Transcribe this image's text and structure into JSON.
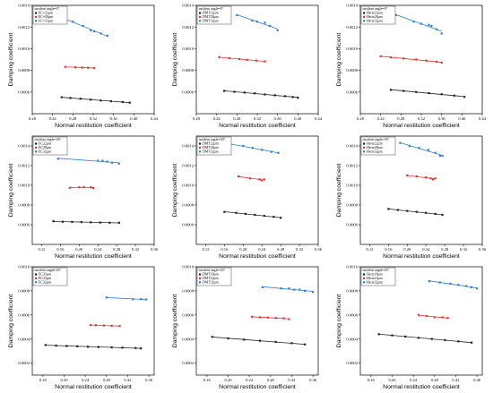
{
  "colors": {
    "series_1": "#222222",
    "series_2": "#e8322b",
    "series_3": "#2b7fd6"
  },
  "chart_data": [
    {
      "type": "line",
      "title": "",
      "xlabel": "Normal restitution coefficient",
      "ylabel": "Damping coefficient",
      "xlim": [
        0.2,
        0.44
      ],
      "ylim": [
        0.0004,
        0.0014
      ],
      "xticks": [
        "0.20",
        "0.24",
        "0.28",
        "0.32",
        "0.36",
        "0.40",
        "0.44"
      ],
      "yticks": [
        "0.0006",
        "0.0008",
        "0.0010",
        "0.0012",
        "0.0014"
      ],
      "legend_title": "incident angle=0°",
      "legend_position": "top-left",
      "series": [
        {
          "name": "EC=22μm",
          "x": [
            0.258,
            0.275,
            0.295,
            0.315,
            0.335,
            0.355,
            0.378,
            0.392
          ],
          "y": [
            0.000552,
            0.000545,
            0.000538,
            0.00053,
            0.000522,
            0.000515,
            0.000508,
            0.000502
          ]
        },
        {
          "name": "EC=28μm",
          "x": [
            0.265,
            0.285,
            0.298,
            0.31,
            0.322
          ],
          "y": [
            0.000832,
            0.000828,
            0.000826,
            0.000824,
            0.000822
          ]
        },
        {
          "name": "EC=32μm",
          "x": [
            0.262,
            0.28,
            0.3,
            0.315,
            0.322,
            0.335,
            0.348
          ],
          "y": [
            0.00128,
            0.00125,
            0.00121,
            0.00117,
            0.00116,
            0.00114,
            0.00112
          ]
        }
      ]
    },
    {
      "type": "line",
      "title": "",
      "xlabel": "Normal restitution coefficient",
      "ylabel": "Damping coefficient",
      "xlim": [
        0.2,
        0.44
      ],
      "ylim": [
        0.0004,
        0.0014
      ],
      "xticks": [
        "0.20",
        "0.24",
        "0.28",
        "0.32",
        "0.36",
        "0.40",
        "0.44"
      ],
      "yticks": [
        "0.0006",
        "0.0008",
        "0.0010",
        "0.0012",
        "0.0014"
      ],
      "legend_title": "incident angle=0°",
      "legend_position": "top-left",
      "series": [
        {
          "name": "DMT22μm",
          "x": [
            0.255,
            0.275,
            0.295,
            0.315,
            0.335,
            0.355,
            0.375,
            0.39,
            0.4
          ],
          "y": [
            0.00061,
            0.000602,
            0.000595,
            0.000588,
            0.000578,
            0.00057,
            0.000562,
            0.000554,
            0.000548
          ]
        },
        {
          "name": "DMT28μm",
          "x": [
            0.245,
            0.265,
            0.285,
            0.3,
            0.318,
            0.335
          ],
          "y": [
            0.000922,
            0.000912,
            0.000905,
            0.000897,
            0.00089,
            0.000883
          ]
        },
        {
          "name": "DMT32μm",
          "x": [
            0.28,
            0.31,
            0.32,
            0.335,
            0.345,
            0.36
          ],
          "y": [
            0.00131,
            0.00126,
            0.00125,
            0.00124,
            0.00121,
            0.00117
          ]
        }
      ]
    },
    {
      "type": "line",
      "title": "",
      "xlabel": "Normal restitution coefficient",
      "ylabel": "Damping coefficient",
      "xlim": [
        0.2,
        0.44
      ],
      "ylim": [
        0.0004,
        0.0014
      ],
      "xticks": [
        "0.20",
        "0.24",
        "0.28",
        "0.32",
        "0.36",
        "0.40",
        "0.44"
      ],
      "yticks": [
        "0.0006",
        "0.0008",
        "0.0010",
        "0.0012",
        "0.0014"
      ],
      "legend_title": "incident angle=0°",
      "legend_position": "top-left",
      "series": [
        {
          "name": "Hertz22μm",
          "x": [
            0.26,
            0.285,
            0.31,
            0.335,
            0.36,
            0.385,
            0.405
          ],
          "y": [
            0.00062,
            0.00061,
            0.0006,
            0.00059,
            0.00058,
            0.000567,
            0.000555
          ]
        },
        {
          "name": "Hertz28μm",
          "x": [
            0.24,
            0.26,
            0.285,
            0.31,
            0.33,
            0.35,
            0.36
          ],
          "y": [
            0.00093,
            0.00092,
            0.00091,
            0.0009,
            0.00089,
            0.00088,
            0.000872
          ]
        },
        {
          "name": "Hertz32μm",
          "x": [
            0.27,
            0.305,
            0.32,
            0.335,
            0.34,
            0.35,
            0.36
          ],
          "y": [
            0.00131,
            0.00125,
            0.00123,
            0.00122,
            0.00121,
            0.00118,
            0.00114
          ]
        }
      ]
    },
    {
      "type": "line",
      "title": "",
      "xlabel": "Normal restitution coefficient",
      "ylabel": "Damping coefficient",
      "xlim": [
        0.1,
        0.36
      ],
      "ylim": [
        0.0004,
        0.0015
      ],
      "xticks": [
        "0.12",
        "0.16",
        "0.20",
        "0.24",
        "0.28",
        "0.32",
        "0.36"
      ],
      "yticks": [
        "0.0006",
        "0.0008",
        "0.0010",
        "0.0012",
        "0.0014"
      ],
      "legend_title": "incident angle=30°",
      "legend_position": "top-left",
      "series": [
        {
          "name": "EC22μm",
          "x": [
            0.145,
            0.165,
            0.185,
            0.205,
            0.225,
            0.245,
            0.265,
            0.285
          ],
          "y": [
            0.000635,
            0.00063,
            0.000628,
            0.000626,
            0.000624,
            0.000622,
            0.00062,
            0.00062
          ]
        },
        {
          "name": "EC28μm",
          "x": [
            0.18,
            0.2,
            0.21,
            0.225,
            0.23
          ],
          "y": [
            0.000975,
            0.00098,
            0.000982,
            0.00098,
            0.000972
          ]
        },
        {
          "name": "EC32μm",
          "x": [
            0.155,
            0.24,
            0.25,
            0.26,
            0.27,
            0.285
          ],
          "y": [
            0.00127,
            0.00125,
            0.00125,
            0.00124,
            0.00123,
            0.00122
          ]
        }
      ]
    },
    {
      "type": "line",
      "title": "",
      "xlabel": "Normal restitution coefficient",
      "ylabel": "Damping coefficient",
      "xlim": [
        0.1,
        0.36
      ],
      "ylim": [
        0.0004,
        0.0015
      ],
      "xticks": [
        "0.12",
        "0.16",
        "0.20",
        "0.24",
        "0.28",
        "0.32",
        "0.36"
      ],
      "yticks": [
        "0.0006",
        "0.0008",
        "0.0010",
        "0.0012",
        "0.0014"
      ],
      "legend_title": "incident angle=30°",
      "legend_position": "top-left",
      "series": [
        {
          "name": "DMT22μm",
          "x": [
            0.16,
            0.185,
            0.205,
            0.225,
            0.245,
            0.265,
            0.28
          ],
          "y": [
            0.00073,
            0.00072,
            0.00071,
            0.0007,
            0.00069,
            0.00068,
            0.00067
          ]
        },
        {
          "name": "DMT28μm",
          "x": [
            0.19,
            0.215,
            0.235,
            0.24,
            0.245
          ],
          "y": [
            0.00109,
            0.00107,
            0.00106,
            0.00105,
            0.00106
          ]
        },
        {
          "name": "DMT32μm",
          "x": [
            0.17,
            0.2,
            0.22,
            0.24,
            0.26,
            0.275
          ],
          "y": [
            0.00142,
            0.0014,
            0.00138,
            0.00136,
            0.00134,
            0.00133
          ]
        }
      ]
    },
    {
      "type": "line",
      "title": "",
      "xlabel": "Normal restitution coefficient",
      "ylabel": "Damping coefficient",
      "xlim": [
        0.1,
        0.36
      ],
      "ylim": [
        0.0004,
        0.0015
      ],
      "xticks": [
        "0.12",
        "0.16",
        "0.20",
        "0.24",
        "0.28",
        "0.32",
        "0.36"
      ],
      "yticks": [
        "0.0006",
        "0.0008",
        "0.0010",
        "0.0012",
        "0.0014"
      ],
      "legend_title": "incident angle=30°",
      "legend_position": "top-left",
      "series": [
        {
          "name": "Hertz22μm",
          "x": [
            0.16,
            0.18,
            0.2,
            0.22,
            0.24,
            0.26,
            0.275
          ],
          "y": [
            0.00076,
            0.00075,
            0.00074,
            0.00073,
            0.00072,
            0.00071,
            0.0007
          ]
        },
        {
          "name": "Hertz28μm",
          "x": [
            0.2,
            0.22,
            0.24,
            0.25,
            0.255,
            0.26
          ],
          "y": [
            0.0011,
            0.00109,
            0.00108,
            0.00107,
            0.00106,
            0.00107
          ]
        },
        {
          "name": "Hertz32μm",
          "x": [
            0.185,
            0.205,
            0.225,
            0.245,
            0.26,
            0.27,
            0.275
          ],
          "y": [
            0.00143,
            0.0014,
            0.00138,
            0.00136,
            0.00133,
            0.0013,
            0.0013
          ]
        }
      ]
    },
    {
      "type": "line",
      "title": "",
      "xlabel": "Normal restitution coefficient",
      "ylabel": "Damping coefficient",
      "xlim": [
        0.14,
        0.37
      ],
      "ylim": [
        0.0001,
        0.001
      ],
      "xticks": [
        "0.16",
        "0.20",
        "0.24",
        "0.28",
        "0.32",
        "0.36"
      ],
      "yticks": [
        "0.0002",
        "0.0004",
        "0.0006",
        "0.0008",
        "0.0010"
      ],
      "legend_title": "incident angle=45°",
      "legend_position": "top-left",
      "series": [
        {
          "name": "EC33μm",
          "x": [
            0.165,
            0.185,
            0.205,
            0.225,
            0.245,
            0.265,
            0.29,
            0.31,
            0.335,
            0.345
          ],
          "y": [
            0.00035,
            0.000345,
            0.000342,
            0.000339,
            0.000336,
            0.000333,
            0.00033,
            0.000328,
            0.000325,
            0.000322
          ]
        },
        {
          "name": "EC23μm",
          "x": [
            0.25,
            0.26,
            0.275,
            0.29,
            0.305
          ],
          "y": [
            0.000515,
            0.000515,
            0.000512,
            0.00051,
            0.000508
          ]
        },
        {
          "name": "EC32μm",
          "x": [
            0.28,
            0.33,
            0.345,
            0.355
          ],
          "y": [
            0.000745,
            0.00073,
            0.000732,
            0.000728
          ]
        }
      ]
    },
    {
      "type": "line",
      "title": "",
      "xlabel": "Normal restitution coefficient",
      "ylabel": "Damping coefficient",
      "xlim": [
        0.14,
        0.37
      ],
      "ylim": [
        0.0001,
        0.001
      ],
      "xticks": [
        "0.16",
        "0.20",
        "0.24",
        "0.28",
        "0.32",
        "0.36"
      ],
      "yticks": [
        "0.0002",
        "0.0004",
        "0.0006",
        "0.0008",
        "0.0010"
      ],
      "legend_title": "incident angle=45°",
      "legend_position": "top-left",
      "series": [
        {
          "name": "DMT18μm",
          "x": [
            0.17,
            0.2,
            0.23,
            0.26,
            0.29,
            0.32,
            0.345
          ],
          "y": [
            0.000418,
            0.000405,
            0.000395,
            0.000385,
            0.000375,
            0.000365,
            0.000355
          ]
        },
        {
          "name": "DMT22μm",
          "x": [
            0.245,
            0.26,
            0.275,
            0.29,
            0.305,
            0.315
          ],
          "y": [
            0.000585,
            0.00058,
            0.000578,
            0.000575,
            0.000572,
            0.000565
          ]
        },
        {
          "name": "DMT32μm",
          "x": [
            0.265,
            0.3,
            0.315,
            0.325,
            0.335,
            0.345,
            0.36
          ],
          "y": [
            0.00083,
            0.00082,
            0.00082,
            0.00081,
            0.00081,
            0.0008,
            0.00079
          ]
        }
      ]
    },
    {
      "type": "line",
      "title": "",
      "xlabel": "Normal restitution coefficient",
      "ylabel": "Damping coefficient",
      "xlim": [
        0.14,
        0.37
      ],
      "ylim": [
        0.0001,
        0.001
      ],
      "xticks": [
        "0.16",
        "0.20",
        "0.24",
        "0.28",
        "0.32",
        "0.36"
      ],
      "yticks": [
        "0.0002",
        "0.0004",
        "0.0006",
        "0.0008",
        "0.0010"
      ],
      "legend_title": "incident angle=45°",
      "legend_position": "top-left",
      "series": [
        {
          "name": "Hertz18μm",
          "x": [
            0.175,
            0.2,
            0.225,
            0.25,
            0.275,
            0.3,
            0.325,
            0.35
          ],
          "y": [
            0.00044,
            0.00043,
            0.00042,
            0.00041,
            0.0004,
            0.00039,
            0.00038,
            0.00037
          ]
        },
        {
          "name": "Hertz23μm",
          "x": [
            0.25,
            0.265,
            0.28,
            0.295,
            0.305
          ],
          "y": [
            0.0006,
            0.00059,
            0.00058,
            0.00058,
            0.000575
          ]
        },
        {
          "name": "Hertz32μm",
          "x": [
            0.27,
            0.29,
            0.31,
            0.325,
            0.34,
            0.35,
            0.36
          ],
          "y": [
            0.00088,
            0.00087,
            0.00086,
            0.00085,
            0.00084,
            0.00083,
            0.00082
          ]
        }
      ]
    }
  ]
}
